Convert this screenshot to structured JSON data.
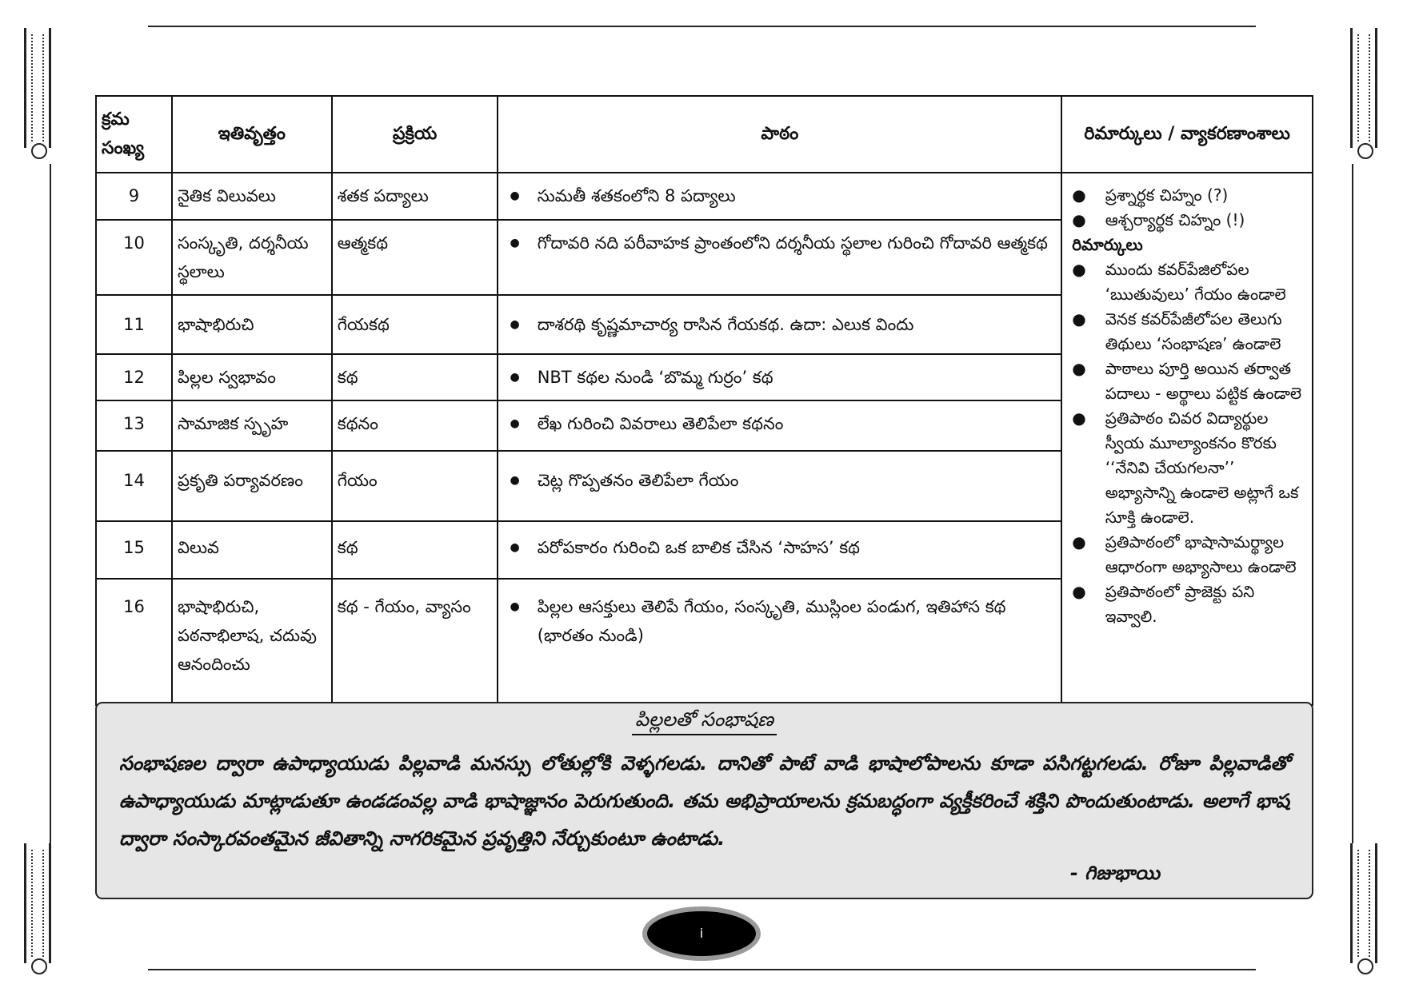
{
  "table": {
    "headers": [
      "క్రమ సంఖ్య",
      "ఇతివృత్తం",
      "ప్రక్రియ",
      "పాఠం",
      "రిమార్కులు / వ్యాకరణాంశాలు"
    ],
    "rows": [
      {
        "num": "9",
        "theme": "నైతిక విలువలు",
        "genre": "శతక పద్యాలు",
        "lesson": "సుమతీ శతకంలోని 8 పద్యాలు"
      },
      {
        "num": "10",
        "theme": "సంస్కృతి, దర్శనీయ స్థలాలు",
        "genre": "ఆత్మకథ",
        "lesson": "గోదావరి నది పరీవాహక ప్రాంతంలోని దర్శనీయ స్థలాల గురించి గోదావరి ఆత్మకథ"
      },
      {
        "num": "11",
        "theme": "భాషాభిరుచి",
        "genre": "గేయకథ",
        "lesson": "దాశరథి కృష్ణమాచార్య రాసిన గేయకథ. ఉదా: ఎలుక విందు"
      },
      {
        "num": "12",
        "theme": "పిల్లల స్వభావం",
        "genre": "కథ",
        "lesson": "NBT కథల నుండి ‘బొమ్మ గుర్రం’ కథ"
      },
      {
        "num": "13",
        "theme": "సామాజిక స్పృహ",
        "genre": "కథనం",
        "lesson": "లేఖ గురించి వివరాలు తెలిపేలా కథనం"
      },
      {
        "num": "14",
        "theme": "ప్రకృతి పర్యావరణం",
        "genre": "గేయం",
        "lesson": "చెట్ల గొప్పతనం తెలిపేలా గేయం"
      },
      {
        "num": "15",
        "theme": "విలువ",
        "genre": "కథ",
        "lesson": "పరోపకారం గురించి ఒక బాలిక చేసిన ‘సాహస’ కథ"
      },
      {
        "num": "16",
        "theme": "భాషాభిరుచి, పఠనాభిలాష, చదువు ఆనందించు",
        "genre": "కథ - గేయం, వ్యాసం",
        "lesson": "పిల్లల ఆసక్తులు తెలిపే గేయం, సంస్కృతి, ముస్లింల పండుగ, ఇతిహాస కథ (భారతం నుండి)"
      }
    ],
    "remarks": {
      "grammar": [
        "ప్రశ్నార్థక చిహ్నం (?)",
        "ఆశ్చర్యార్థక చిహ్నం (!)"
      ],
      "heading": "రిమార్కులు",
      "items": [
        "ముందు కవర్‌పేజిలోపల ‘ఋతువులు’ గేయం ఉండాలె",
        "వెనక కవర్‌పేజీలోపల తెలుగు తిథులు ‘సంభాషణ’ ఉండాలె",
        "పాఠాలు పూర్తి అయిన తర్వాత పదాలు - అర్థాలు పట్టిక ఉండాలె",
        "ప్రతిపాఠం చివర విద్యార్థుల స్వీయ మూల్యాంకనం కొరకు ‘‘నేనివి చేయగలనా’’ అభ్యాసాన్ని ఉండాలె అట్లాగే ఒక సూక్తి ఉండాలె.",
        "ప్రతిపాఠంలో భాషాసామర్థ్యాల ఆధారంగా అభ్యాసాలు ఉండాలె",
        "ప్రతిపాఠంలో ప్రాజెక్టు పని ఇవ్వాలి."
      ]
    }
  },
  "quote": {
    "title": "పిల్లలతో సంభాషణ",
    "body": "సంభాషణల ద్వారా ఉపాధ్యాయుడు పిల్లవాడి మనస్సు లోతుల్లోకి వెళ్ళగలడు. దానితో పాటే వాడి భాషాలోపాలను కూడా పసిగట్టగలడు. రోజూ పిల్లవాడితో ఉపాధ్యాయుడు మాట్లాడుతూ ఉండడంవల్ల వాడి భాషాజ్ఞానం పెరుగుతుంది. తమ అభిప్రాయాలను క్రమబద్ధంగా వ్యక్తీకరించే శక్తిని పొందుతుంటాడు. అలాగే భాష ద్వారా సంస్కారవంతమైన జీవితాన్ని నాగరికమైన ప్రవృత్తిని నేర్చుకుంటూ ఉంటాడు.",
    "author": "- గిజుభాయి"
  },
  "page_number": "i"
}
